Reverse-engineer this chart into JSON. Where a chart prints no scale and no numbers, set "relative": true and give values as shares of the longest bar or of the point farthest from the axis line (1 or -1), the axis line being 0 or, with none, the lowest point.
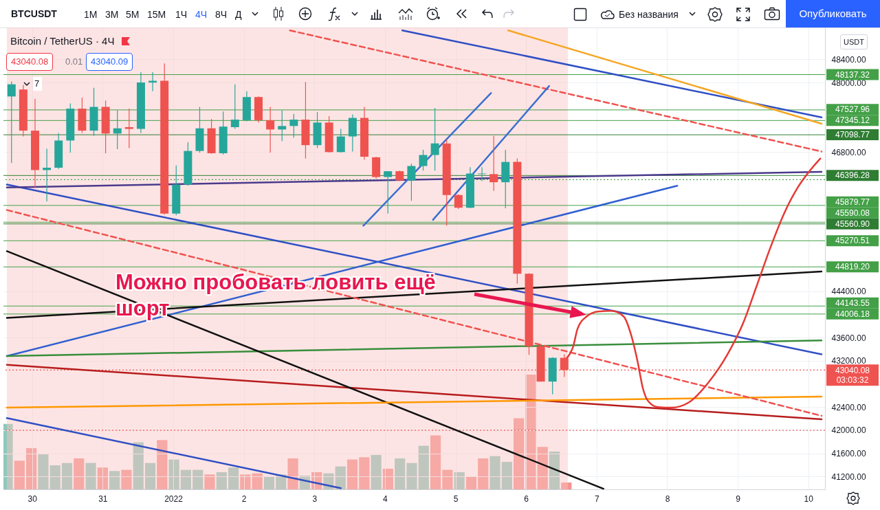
{
  "chart_data": [
    {
      "type": "candlestick",
      "title": "Bitcoin / TetherUS · 4Ч",
      "ylabel": "USDT",
      "x": [
        "2021-12-29T17:00",
        "2021-12-29T21:00",
        "2021-12-30T01:00",
        "2021-12-30T05:00",
        "2021-12-30T09:00",
        "2021-12-30T13:00",
        "2021-12-30T17:00",
        "2021-12-30T21:00",
        "2021-12-31T01:00",
        "2021-12-31T05:00",
        "2021-12-31T09:00",
        "2021-12-31T13:00",
        "2021-12-31T17:00",
        "2021-12-31T21:00",
        "2022-01-01T01:00",
        "2022-01-01T05:00",
        "2022-01-01T09:00",
        "2022-01-01T13:00",
        "2022-01-01T17:00",
        "2022-01-01T21:00",
        "2022-01-02T01:00",
        "2022-01-02T05:00",
        "2022-01-02T09:00",
        "2022-01-02T13:00",
        "2022-01-02T17:00",
        "2022-01-02T21:00",
        "2022-01-03T01:00",
        "2022-01-03T05:00",
        "2022-01-03T09:00",
        "2022-01-03T13:00",
        "2022-01-03T17:00",
        "2022-01-03T21:00",
        "2022-01-04T01:00",
        "2022-01-04T05:00",
        "2022-01-04T09:00",
        "2022-01-04T13:00",
        "2022-01-04T17:00",
        "2022-01-04T21:00",
        "2022-01-05T01:00",
        "2022-01-05T05:00",
        "2022-01-05T09:00",
        "2022-01-05T13:00",
        "2022-01-05T17:00",
        "2022-01-05T21:00",
        "2022-01-06T01:00",
        "2022-01-06T05:00",
        "2022-01-06T09:00",
        "2022-01-06T13:00"
      ],
      "ohlc": [
        [
          47760,
          48020,
          46610,
          47970
        ],
        [
          47880,
          47960,
          47070,
          47170
        ],
        [
          47170,
          47720,
          46180,
          46490
        ],
        [
          46490,
          46860,
          45950,
          46530
        ],
        [
          46530,
          47130,
          46510,
          47000
        ],
        [
          47000,
          47640,
          46790,
          47550
        ],
        [
          47550,
          47740,
          47130,
          47170
        ],
        [
          47170,
          47910,
          47080,
          47580
        ],
        [
          47580,
          47690,
          46780,
          47120
        ],
        [
          47120,
          47520,
          46850,
          47210
        ],
        [
          47230,
          47550,
          46870,
          47200
        ],
        [
          47200,
          48180,
          47130,
          48000
        ],
        [
          48000,
          48180,
          47850,
          48030
        ],
        [
          48030,
          48330,
          45720,
          45740
        ],
        [
          45740,
          46570,
          45710,
          46240
        ],
        [
          46240,
          46970,
          46220,
          46820
        ],
        [
          46820,
          47580,
          46790,
          47210
        ],
        [
          47210,
          47370,
          46770,
          46780
        ],
        [
          46780,
          47500,
          46760,
          47240
        ],
        [
          47230,
          47970,
          47200,
          47360
        ],
        [
          47350,
          47850,
          47330,
          47750
        ],
        [
          47750,
          47760,
          47310,
          47350
        ],
        [
          47350,
          47580,
          46790,
          47190
        ],
        [
          47190,
          47520,
          46990,
          47250
        ],
        [
          47250,
          47460,
          47050,
          47360
        ],
        [
          47360,
          48010,
          46690,
          46920
        ],
        [
          46920,
          47490,
          46870,
          47310
        ],
        [
          47310,
          47420,
          46790,
          46800
        ],
        [
          46800,
          47200,
          46790,
          47070
        ],
        [
          47070,
          47450,
          46810,
          47390
        ],
        [
          47390,
          47580,
          46670,
          46720
        ],
        [
          46710,
          46720,
          46340,
          46370
        ],
        [
          46370,
          46470,
          45740,
          46470
        ],
        [
          46470,
          46480,
          46300,
          46310
        ],
        [
          46310,
          46600,
          45960,
          46560
        ],
        [
          46560,
          46840,
          46480,
          46750
        ],
        [
          46750,
          47560,
          46480,
          46950
        ],
        [
          46950,
          47010,
          45530,
          46060
        ],
        [
          46060,
          46070,
          45820,
          45840
        ],
        [
          45840,
          46540,
          45830,
          46430
        ],
        [
          46420,
          46540,
          46300,
          46430
        ],
        [
          46420,
          47080,
          46130,
          46280
        ],
        [
          46280,
          46840,
          45830,
          46630
        ],
        [
          46630,
          46690,
          44530,
          44700
        ],
        [
          44700,
          44710,
          43300,
          43450
        ],
        [
          43450,
          43460,
          42840,
          42840
        ],
        [
          42840,
          43260,
          42620,
          43250
        ],
        [
          43250,
          43310,
          42920,
          43040.08
        ]
      ],
      "xlim": [
        "2021-12-29T15:25",
        "2022-01-10T04:30"
      ],
      "ylim": [
        40980,
        48950
      ],
      "xticks": [
        {
          "value": "2021-12-30",
          "label": "30"
        },
        {
          "value": "2021-12-31",
          "label": "31"
        },
        {
          "value": "2022-01-01",
          "label": "2022"
        },
        {
          "value": "2022-01-02",
          "label": "2"
        },
        {
          "value": "2022-01-03",
          "label": "3"
        },
        {
          "value": "2022-01-04",
          "label": "4"
        },
        {
          "value": "2022-01-05",
          "label": "5"
        },
        {
          "value": "2022-01-06",
          "label": "6"
        },
        {
          "value": "2022-01-07",
          "label": "7"
        },
        {
          "value": "2022-01-08",
          "label": "8"
        },
        {
          "value": "2022-01-09",
          "label": "9"
        },
        {
          "value": "2022-01-10",
          "label": "10"
        }
      ],
      "yticks": [
        {
          "value": 48400,
          "label": "48400.00"
        },
        {
          "value": 48000,
          "label": "48000.00"
        },
        {
          "value": 46800,
          "label": "46800.00"
        },
        {
          "value": 44400,
          "label": "44400.00"
        },
        {
          "value": 43600,
          "label": "43600.00"
        },
        {
          "value": 43200,
          "label": "43200.00"
        },
        {
          "value": 42400,
          "label": "42400.00"
        },
        {
          "value": 42000,
          "label": "42000.00"
        },
        {
          "value": 41600,
          "label": "41600.00"
        },
        {
          "value": 41200,
          "label": "41200.00"
        }
      ],
      "grid": true,
      "bands": [
        {
          "axis": "x",
          "from": "2021-12-29T15:25",
          "to": "2022-01-06T14:15",
          "color": "#fbc4c4"
        }
      ],
      "ref_lines": [
        {
          "axis": "y",
          "value": 48137.32,
          "label": "48137.32",
          "color": "#43a047"
        },
        {
          "axis": "y",
          "value": 47527.96,
          "label": "47527.96",
          "color": "#43a047"
        },
        {
          "axis": "y",
          "value": 47345.12,
          "label": "47345.12",
          "color": "#43a047"
        },
        {
          "axis": "y",
          "value": 47098.77,
          "label": "47098.77",
          "color": "#2e7d32"
        },
        {
          "axis": "y",
          "value": 46396.28,
          "label": "46396.28",
          "color": "#2e7d32"
        },
        {
          "axis": "y",
          "value": 46325,
          "color": "#43a047",
          "line_style": "dotted"
        },
        {
          "axis": "y",
          "value": 45879.77,
          "label": "45879.77",
          "color": "#43a047"
        },
        {
          "axis": "y",
          "value": 45590.08,
          "label": "45590.08",
          "color": "#43a047"
        },
        {
          "axis": "y",
          "value": 45560.9,
          "label": "45560.90",
          "color": "#2e7d32"
        },
        {
          "axis": "y",
          "value": 45270.51,
          "label": "45270.51",
          "color": "#43a047"
        },
        {
          "axis": "y",
          "value": 44819.2,
          "label": "44819.20",
          "color": "#43a047"
        },
        {
          "axis": "y",
          "value": 44143.55,
          "label": "44143.55",
          "color": "#43a047"
        },
        {
          "axis": "y",
          "value": 44006.18,
          "label": "44006.18",
          "color": "#43a047"
        },
        {
          "axis": "y",
          "value": 43040.08,
          "label": "43040.08\n03:03:32",
          "color": "#ef5350",
          "line_style": "dotted"
        },
        {
          "axis": "y",
          "value": 42000,
          "color": "#e53935",
          "line_style": "dotted"
        }
      ],
      "series": [
        {
          "type": "line",
          "color": "#2f4fc4",
          "x": [
            "2021-12-29T15:25",
            "2022-01-10T04:30"
          ],
          "values": [
            46240,
            43310
          ]
        },
        {
          "type": "line",
          "color": "#2f5fd0",
          "x": [
            "2021-12-29T15:25",
            "2022-01-08T03:25"
          ],
          "values": [
            43280,
            46220
          ]
        },
        {
          "type": "line",
          "color": "#2f4fc4",
          "x": [
            "2022-01-04T05:55",
            "2022-01-10T04:30"
          ],
          "values": [
            48900,
            47400
          ]
        },
        {
          "type": "line",
          "color": "#f5a623",
          "x": [
            "2022-01-05T17:55",
            "2022-01-10T04:30"
          ],
          "values": [
            48900,
            47290
          ]
        },
        {
          "type": "line",
          "color": "#b71c1c",
          "x": [
            "2021-12-29T15:25",
            "2022-01-10T04:30"
          ],
          "values": [
            43130,
            42190
          ]
        },
        {
          "type": "line",
          "color": "#388e3c",
          "x": [
            "2021-12-29T15:25",
            "2022-01-10T04:30"
          ],
          "values": [
            43280,
            43550
          ]
        },
        {
          "type": "line",
          "color": "#111111",
          "x": [
            "2021-12-29T15:25",
            "2022-01-10T04:30"
          ],
          "values": [
            43940,
            44740
          ]
        },
        {
          "type": "line",
          "color": "#111111",
          "x": [
            "2021-12-29T15:25",
            "2022-01-07T02:20"
          ],
          "values": [
            45090,
            40990
          ]
        },
        {
          "type": "line",
          "color": "#ff9800",
          "x": [
            "2021-12-29T15:25",
            "2022-01-10T04:30"
          ],
          "values": [
            42390,
            42580
          ]
        },
        {
          "type": "line",
          "color": "#2f4fc4",
          "x": [
            "2021-12-29T15:25",
            "2022-01-03T09:00"
          ],
          "values": [
            42210,
            41000
          ]
        },
        {
          "type": "line",
          "color": "#ef5350",
          "line_style": "dashed",
          "x": [
            "2021-12-29T15:25",
            "2022-01-10T04:30"
          ],
          "values": [
            45800,
            42250
          ]
        },
        {
          "type": "line",
          "color": "#ef5350",
          "line_style": "dashed",
          "x": [
            "2022-01-02T15:40",
            "2022-01-10T04:30"
          ],
          "values": [
            48900,
            46810
          ]
        },
        {
          "type": "line",
          "color": "#4a3a8c",
          "x": [
            "2021-12-29T15:25",
            "2022-01-10T04:30"
          ],
          "values": [
            46190,
            46460
          ]
        },
        {
          "type": "line",
          "color": "#3a6fd0",
          "x": [
            "2022-01-03T16:40",
            "2022-01-05T12:05"
          ],
          "values": [
            45530,
            47820
          ]
        },
        {
          "type": "line",
          "color": "#3a6fd0",
          "x": [
            "2022-01-04T16:20",
            "2022-01-06T07:50"
          ],
          "values": [
            45630,
            47940
          ]
        },
        {
          "type": "line",
          "color": "#e53935",
          "x": [
            "2022-01-06T12:25",
            "2022-01-06T15:55",
            "2022-01-06T17:30",
            "2022-01-06T20:30",
            "2022-01-07T00:30",
            "2022-01-07T05:05",
            "2022-01-07T09:15",
            "2022-01-07T11:35",
            "2022-01-07T13:55",
            "2022-01-07T15:45",
            "2022-01-07T17:25",
            "2022-01-07T20:50",
            "2022-01-08T01:30",
            "2022-01-08T07:20",
            "2022-01-08T14:15",
            "2022-01-08T20:30",
            "2022-01-09T01:50",
            "2022-01-09T06:30",
            "2022-01-09T11:05",
            "2022-01-09T15:45",
            "2022-01-09T20:25",
            "2022-01-10T01:00",
            "2022-01-10T04:05"
          ],
          "values": [
            43190,
            43430,
            43750,
            43960,
            44050,
            44060,
            43960,
            43670,
            43190,
            42720,
            42510,
            42400,
            42390,
            42480,
            42840,
            43310,
            43850,
            44500,
            45150,
            45740,
            46190,
            46510,
            46690
          ]
        }
      ],
      "annotations": [
        "BTCUSDT",
        "1M",
        "3M",
        "5M",
        "15M",
        "1Ч",
        "4Ч",
        "8Ч",
        "Д",
        "Без названия",
        "Опубликовать",
        "43040.08",
        "0.01",
        "43040.09",
        "7",
        "Можно пробовать ловить ещё шорт"
      ]
    },
    {
      "type": "bar",
      "relative": true,
      "categories": [
        null,
        null,
        null,
        null,
        null,
        null,
        null,
        null,
        null,
        null,
        null,
        null,
        null,
        null,
        null,
        null,
        null,
        null,
        null,
        null,
        null,
        null,
        null,
        null,
        null,
        null,
        null,
        null,
        null,
        null,
        null,
        null,
        null,
        null,
        null,
        null,
        null,
        null,
        null,
        null,
        null,
        null,
        null,
        null,
        null,
        null,
        null,
        null
      ],
      "values": [
        0.57,
        0.25,
        0.36,
        0.31,
        0.21,
        0.23,
        0.27,
        0.23,
        0.19,
        0.16,
        0.17,
        0.41,
        0.23,
        0.43,
        0.26,
        0.17,
        0.17,
        0.13,
        0.15,
        0.19,
        0.13,
        0.14,
        0.11,
        0.13,
        0.27,
        0.12,
        0.15,
        0.14,
        0.2,
        0.26,
        0.28,
        0.3,
        0.18,
        0.27,
        0.23,
        0.38,
        0.47,
        0.17,
        0.15,
        0.11,
        0.27,
        0.29,
        0.24,
        0.62,
        1,
        0.37,
        0.33,
        0.06
      ],
      "colors": [
        "#8fc9bb",
        "#f3948d",
        "#f3948d",
        "#8fc9bb",
        "#8fc9bb",
        "#8fc9bb",
        "#f3948d",
        "#8fc9bb",
        "#f3948d",
        "#8fc9bb",
        "#f3948d",
        "#8fc9bb",
        "#8fc9bb",
        "#f3948d",
        "#8fc9bb",
        "#8fc9bb",
        "#8fc9bb",
        "#f3948d",
        "#8fc9bb",
        "#8fc9bb",
        "#f3948d",
        "#f3948d",
        "#8fc9bb",
        "#8fc9bb",
        "#f3948d",
        "#8fc9bb",
        "#f3948d",
        "#8fc9bb",
        "#8fc9bb",
        "#f3948d",
        "#f3948d",
        "#8fc9bb",
        "#f3948d",
        "#8fc9bb",
        "#8fc9bb",
        "#8fc9bb",
        "#f3948d",
        "#f3948d",
        "#8fc9bb",
        "#f3948d",
        "#f3948d",
        "#8fc9bb",
        "#8fc9bb",
        "#f3948d",
        "#f3948d",
        "#f3948d",
        "#8fc9bb",
        "#f3948d"
      ]
    }
  ]
}
